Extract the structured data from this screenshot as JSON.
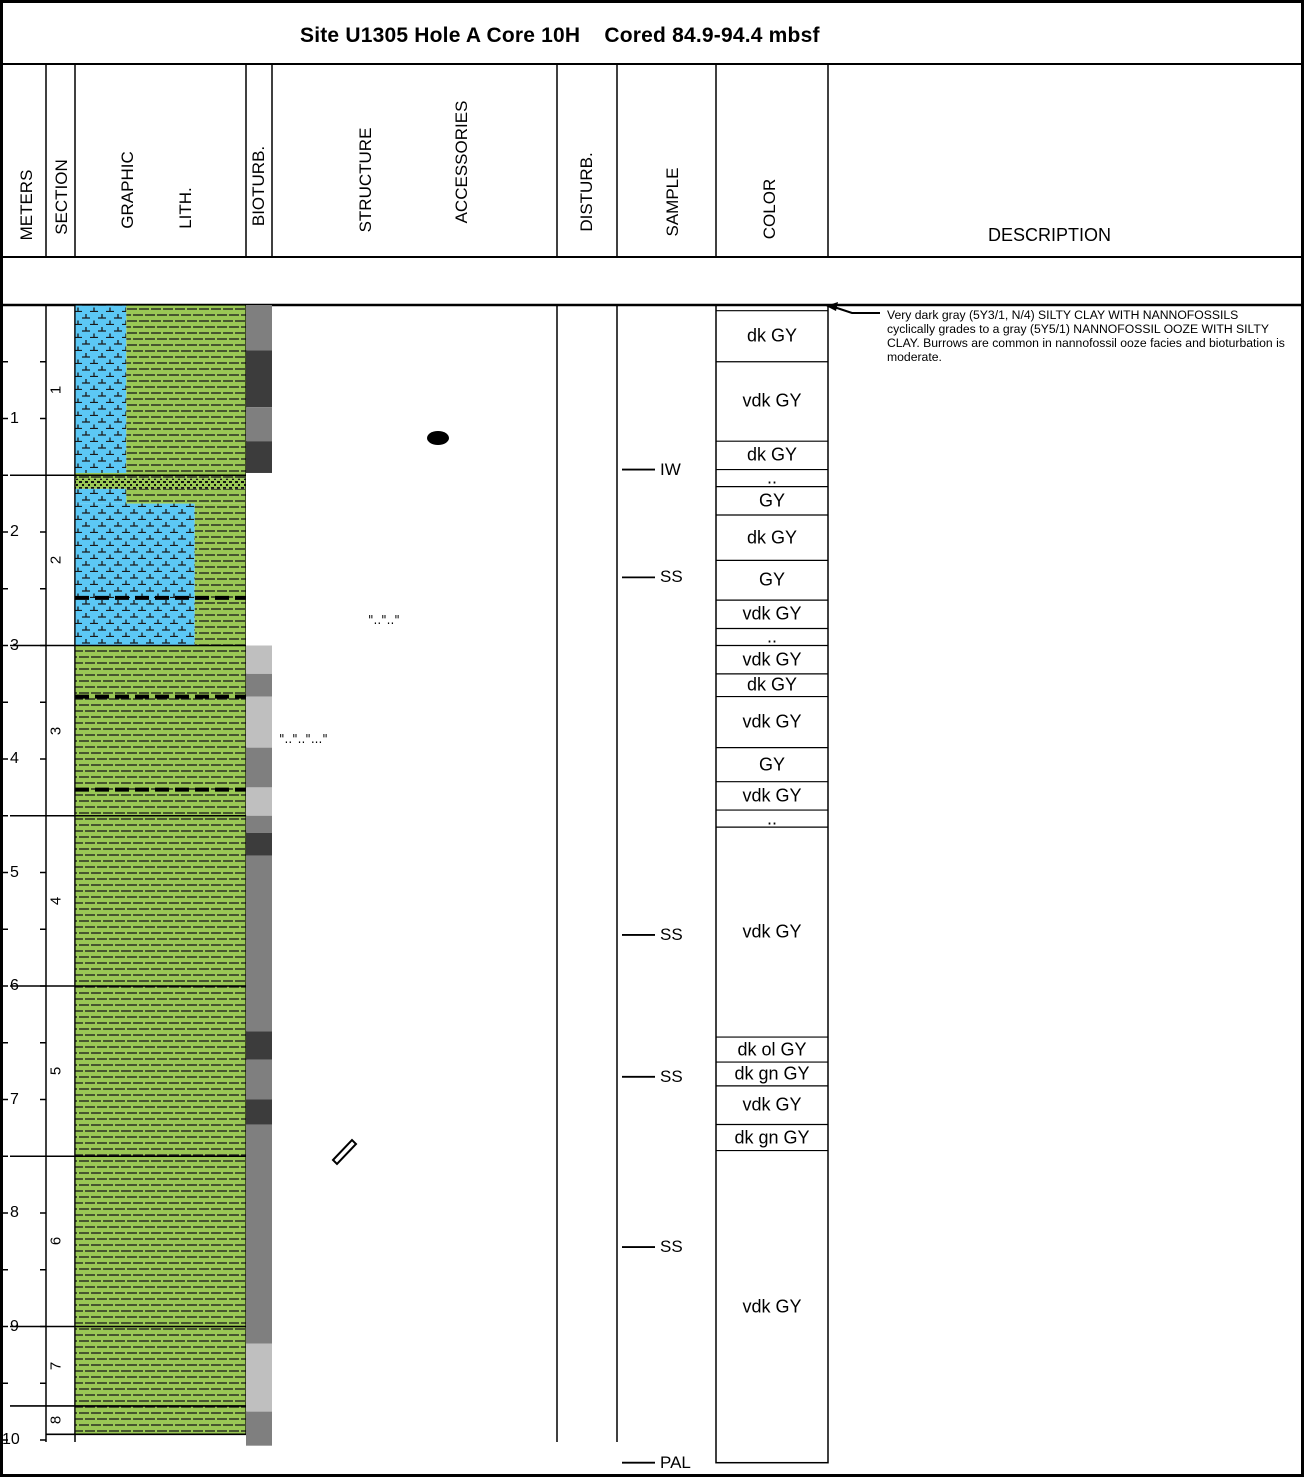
{
  "title": "Site U1305 Hole A Core 10H    Cored 84.9-94.4 mbsf",
  "headers": {
    "meters": "METERS",
    "section": "SECTION",
    "graphic": "GRAPHIC",
    "lith": "LITH.",
    "bioturb": "BIOTURB.",
    "structure": "STRUCTURE",
    "accessories": "ACCESSORIES",
    "disturb": "DISTURB.",
    "sample": "SAMPLE",
    "color": "COLOR",
    "description": "DESCRIPTION"
  },
  "meters": [
    "1",
    "2",
    "3",
    "4",
    "5",
    "6",
    "7",
    "8",
    "9",
    "10"
  ],
  "sections": [
    {
      "label": "1",
      "top_m": 0.0,
      "bottom_m": 1.5
    },
    {
      "label": "2",
      "top_m": 1.5,
      "bottom_m": 3.0
    },
    {
      "label": "3",
      "top_m": 3.0,
      "bottom_m": 4.5
    },
    {
      "label": "4",
      "top_m": 4.5,
      "bottom_m": 6.0
    },
    {
      "label": "5",
      "top_m": 6.0,
      "bottom_m": 7.5
    },
    {
      "label": "6",
      "top_m": 7.5,
      "bottom_m": 9.0
    },
    {
      "label": "7",
      "top_m": 9.0,
      "bottom_m": 9.7
    },
    {
      "label": "8",
      "top_m": 9.7,
      "bottom_m": 9.95
    }
  ],
  "samples": [
    {
      "label": "IW",
      "depth_m": 1.45
    },
    {
      "label": "SS",
      "depth_m": 2.4
    },
    {
      "label": "SS",
      "depth_m": 5.55
    },
    {
      "label": "SS",
      "depth_m": 6.8
    },
    {
      "label": "SS",
      "depth_m": 8.3
    },
    {
      "label": "PAL",
      "depth_m": 10.2
    }
  ],
  "colors": [
    {
      "label": "",
      "top_m": 0.0,
      "bottom_m": 0.05
    },
    {
      "label": "dk GY",
      "top_m": 0.05,
      "bottom_m": 0.5
    },
    {
      "label": "vdk GY",
      "top_m": 0.5,
      "bottom_m": 1.2
    },
    {
      "label": "dk GY",
      "top_m": 1.2,
      "bottom_m": 1.45
    },
    {
      "label": "..",
      "top_m": 1.45,
      "bottom_m": 1.6
    },
    {
      "label": "GY",
      "top_m": 1.6,
      "bottom_m": 1.85
    },
    {
      "label": "dk GY",
      "top_m": 1.85,
      "bottom_m": 2.25
    },
    {
      "label": "GY",
      "top_m": 2.25,
      "bottom_m": 2.6
    },
    {
      "label": "vdk GY",
      "top_m": 2.6,
      "bottom_m": 2.85
    },
    {
      "label": "..",
      "top_m": 2.85,
      "bottom_m": 3.0
    },
    {
      "label": "vdk GY",
      "top_m": 3.0,
      "bottom_m": 3.25
    },
    {
      "label": "dk GY",
      "top_m": 3.25,
      "bottom_m": 3.45
    },
    {
      "label": "vdk GY",
      "top_m": 3.45,
      "bottom_m": 3.9
    },
    {
      "label": "GY",
      "top_m": 3.9,
      "bottom_m": 4.2
    },
    {
      "label": "vdk GY",
      "top_m": 4.2,
      "bottom_m": 4.45
    },
    {
      "label": "..",
      "top_m": 4.45,
      "bottom_m": 4.6
    },
    {
      "label": "vdk GY",
      "top_m": 4.6,
      "bottom_m": 6.45
    },
    {
      "label": "dk ol GY",
      "top_m": 6.45,
      "bottom_m": 6.67
    },
    {
      "label": "dk gn GY",
      "top_m": 6.67,
      "bottom_m": 6.88
    },
    {
      "label": "vdk GY",
      "top_m": 6.88,
      "bottom_m": 7.22
    },
    {
      "label": "dk gn GY",
      "top_m": 7.22,
      "bottom_m": 7.45
    },
    {
      "label": "vdk GY",
      "top_m": 7.45,
      "bottom_m": 10.2
    }
  ],
  "lithology": [
    {
      "type": "ooze-clay",
      "top_m": 0.0,
      "bottom_m": 1.48,
      "ooze_fraction": 0.3
    },
    {
      "type": "clay",
      "top_m": 1.48,
      "bottom_m": 1.53
    },
    {
      "type": "sand-silt",
      "top_m": 1.53,
      "bottom_m": 1.62
    },
    {
      "type": "ooze-clay",
      "top_m": 1.62,
      "bottom_m": 1.75,
      "ooze_fraction": 0.3
    },
    {
      "type": "ooze-clay",
      "top_m": 1.75,
      "bottom_m": 3.0,
      "ooze_fraction": 0.7
    },
    {
      "type": "clay",
      "top_m": 3.0,
      "bottom_m": 9.95
    }
  ],
  "silt_laminae_m": [
    2.58,
    3.45,
    4.27
  ],
  "bioturbation": [
    {
      "shade": "#7f7f7f",
      "top_m": 0.0,
      "bottom_m": 0.4
    },
    {
      "shade": "#3c3c3c",
      "top_m": 0.4,
      "bottom_m": 0.9
    },
    {
      "shade": "#7f7f7f",
      "top_m": 0.9,
      "bottom_m": 1.2
    },
    {
      "shade": "#3c3c3c",
      "top_m": 1.2,
      "bottom_m": 1.48
    },
    {
      "shade": "#ffffff",
      "top_m": 1.48,
      "bottom_m": 3.0
    },
    {
      "shade": "#bfbfbf",
      "top_m": 3.0,
      "bottom_m": 3.25
    },
    {
      "shade": "#7f7f7f",
      "top_m": 3.25,
      "bottom_m": 3.45
    },
    {
      "shade": "#bfbfbf",
      "top_m": 3.45,
      "bottom_m": 3.9
    },
    {
      "shade": "#7f7f7f",
      "top_m": 3.9,
      "bottom_m": 4.25
    },
    {
      "shade": "#bfbfbf",
      "top_m": 4.25,
      "bottom_m": 4.5
    },
    {
      "shade": "#7f7f7f",
      "top_m": 4.5,
      "bottom_m": 4.65
    },
    {
      "shade": "#3c3c3c",
      "top_m": 4.65,
      "bottom_m": 4.85
    },
    {
      "shade": "#7f7f7f",
      "top_m": 4.85,
      "bottom_m": 6.4
    },
    {
      "shade": "#3c3c3c",
      "top_m": 6.4,
      "bottom_m": 6.65
    },
    {
      "shade": "#7f7f7f",
      "top_m": 6.65,
      "bottom_m": 7.0
    },
    {
      "shade": "#3c3c3c",
      "top_m": 7.0,
      "bottom_m": 7.22
    },
    {
      "shade": "#7f7f7f",
      "top_m": 7.22,
      "bottom_m": 9.15
    },
    {
      "shade": "#bfbfbf",
      "top_m": 9.15,
      "bottom_m": 9.75
    },
    {
      "shade": "#7f7f7f",
      "top_m": 9.75,
      "bottom_m": 10.05
    }
  ],
  "structures": [
    {
      "kind": "silt-lamina-symbol",
      "depth_m": 2.75
    },
    {
      "kind": "silt-lamina-symbol",
      "depth_m": 3.75
    },
    {
      "kind": "pebble-icon",
      "depth_m": 1.15
    },
    {
      "kind": "shell-fragment-icon",
      "depth_m": 7.45
    }
  ],
  "lith_colors": {
    "clay": "#9ac855",
    "ooze": "#5cc8f5"
  },
  "description": "Very dark gray (5Y3/1, N/4) SILTY CLAY WITH NANNOFOSSILS cyclically grades to a gray (5Y5/1) NANNOFOSSIL OOZE WITH SILTY CLAY.  Burrows are common in nannofossil ooze facies and bioturbation is moderate."
}
